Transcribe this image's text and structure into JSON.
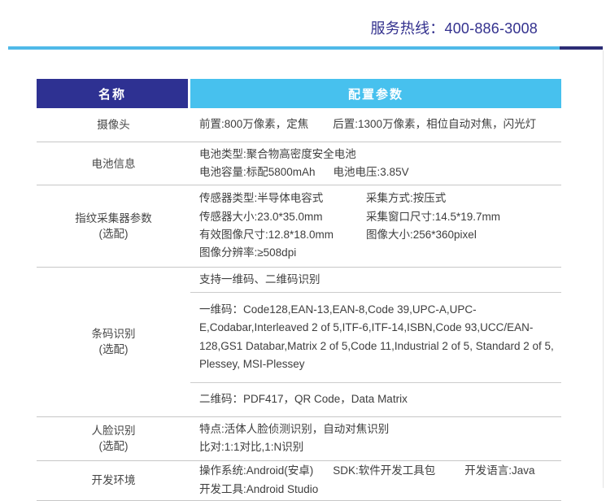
{
  "header": {
    "hotline": "服务热线：400-886-3008"
  },
  "colors": {
    "brand_navy": "#2e3192",
    "brand_sky": "#47c1ee",
    "topline_light": "#4fb9e8",
    "topline_dark": "#2c2d75",
    "hotline_text": "#33318e",
    "body_text": "#3e3e3e",
    "divider": "#c7c7c7"
  },
  "table": {
    "header": {
      "name": "名称",
      "params": "配置参数"
    },
    "rows": {
      "camera": {
        "label": "摄像头",
        "front": "前置:800万像素，定焦",
        "rear": "后置:1300万像素，相位自动对焦，闪光灯"
      },
      "battery": {
        "label": "电池信息",
        "type": "电池类型:聚合物高密度安全电池",
        "capacity": "电池容量:标配5800mAh",
        "voltage": "电池电压:3.85V"
      },
      "fingerprint": {
        "label": "指纹采集器参数",
        "label_note": "(选配)",
        "left": [
          "传感器类型:半导体电容式",
          "传感器大小:23.0*35.0mm",
          "有效图像尺寸:12.8*18.0mm",
          "图像分辨率:≥508dpi"
        ],
        "right": [
          "采集方式:按压式",
          "采集窗口尺寸:14.5*19.7mm",
          "图像大小:256*360pixel"
        ]
      },
      "barcode": {
        "label": "条码识别",
        "label_note": "(选配)",
        "support": "支持一维码、二维码识别",
        "one_d": "一维码：Code128,EAN-13,EAN-8,Code 39,UPC-A,UPC-E,Codabar,Interleaved 2 of 5,ITF-6,ITF-14,ISBN,Code 93,UCC/EAN-128,GS1 Databar,Matrix 2 of 5,Code 11,Industrial 2 of 5, Standard 2 of 5, Plessey, MSI-Plessey",
        "two_d": "二维码：PDF417，QR Code，Data Matrix"
      },
      "face": {
        "label": "人脸识别",
        "label_note": "(选配)",
        "line1": "特点:活体人脸侦测识别，自动对焦识别",
        "line2": "比对:1:1对比,1:N识别"
      },
      "dev": {
        "label": "开发环境",
        "os": "操作系统:Android(安卓)",
        "sdk": "SDK:软件开发工具包",
        "lang": "开发语言:Java",
        "tool": "开发工具:Android Studio"
      }
    }
  }
}
